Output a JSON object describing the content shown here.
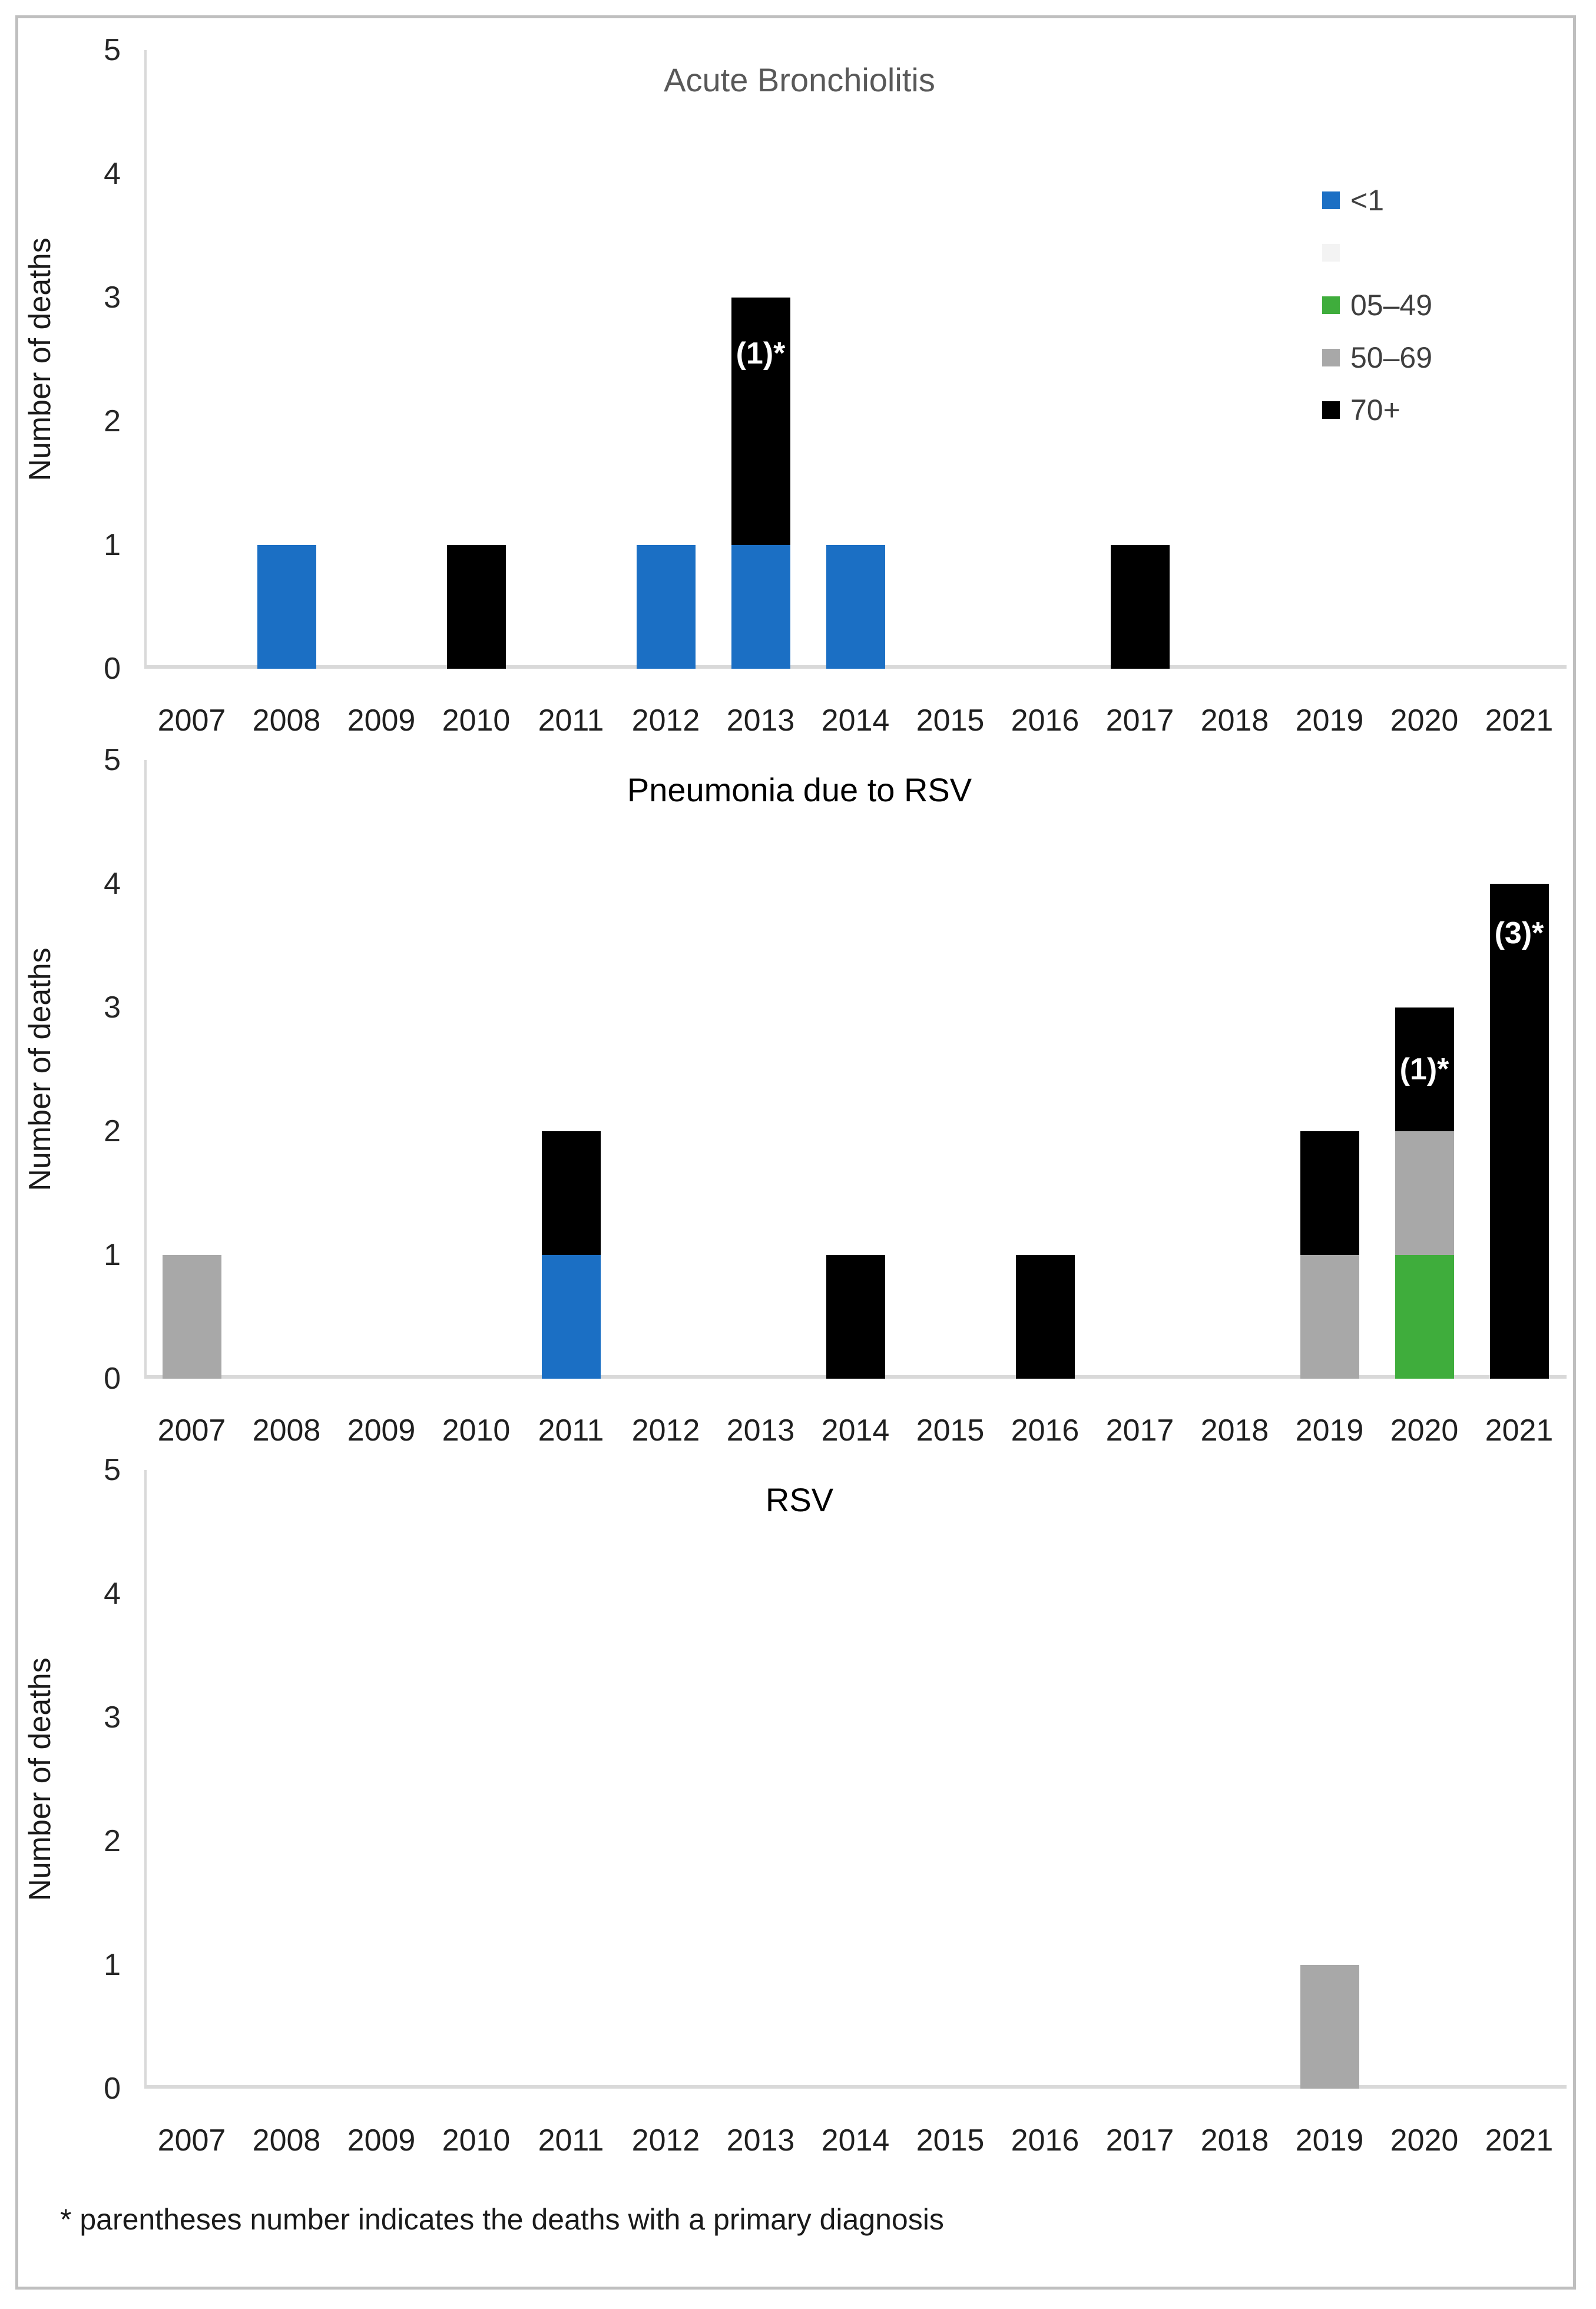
{
  "page": {
    "footnote": "* parentheses number indicates the deaths with a primary diagnosis"
  },
  "axis": {
    "y_label": "Number of deaths",
    "y_ticks": [
      0,
      1,
      2,
      3,
      4,
      5
    ],
    "y_max": 5
  },
  "legend": {
    "position": "right-top-of-first-chart",
    "items": [
      {
        "label": "<1",
        "color": "#1b6fc4"
      },
      {
        "label": "",
        "color": "#f3f3f3"
      },
      {
        "label": "05–49",
        "color": "#3fad3c"
      },
      {
        "label": "50–69",
        "color": "#a8a8a8"
      },
      {
        "label": "70+",
        "color": "#000000"
      }
    ]
  },
  "chart_data": [
    {
      "type": "bar",
      "stacked": true,
      "title": "Acute Bronchiolitis",
      "title_color": "#595959",
      "ylabel": "Number of deaths",
      "ylim": [
        0,
        5
      ],
      "grid": false,
      "categories": [
        "2007",
        "2008",
        "2009",
        "2010",
        "2011",
        "2012",
        "2013",
        "2014",
        "2015",
        "2016",
        "2017",
        "2018",
        "2019",
        "2020",
        "2021"
      ],
      "series": [
        {
          "name": "<1",
          "color": "#1b6fc4",
          "values": [
            0,
            1,
            0,
            0,
            0,
            1,
            1,
            1,
            0,
            0,
            0,
            0,
            0,
            0,
            0
          ]
        },
        {
          "name": "05–49",
          "color": "#3fad3c",
          "values": [
            0,
            0,
            0,
            0,
            0,
            0,
            0,
            0,
            0,
            0,
            0,
            0,
            0,
            0,
            0
          ]
        },
        {
          "name": "50–69",
          "color": "#a8a8a8",
          "values": [
            0,
            0,
            0,
            0,
            0,
            0,
            0,
            0,
            0,
            0,
            0,
            0,
            0,
            0,
            0
          ]
        },
        {
          "name": "70+",
          "color": "#000000",
          "values": [
            0,
            0,
            0,
            1,
            0,
            0,
            2,
            0,
            0,
            0,
            1,
            0,
            0,
            0,
            0
          ]
        }
      ],
      "annotations": [
        {
          "category": "2013",
          "label": "(1)*",
          "value": 2.55
        }
      ]
    },
    {
      "type": "bar",
      "stacked": true,
      "title": "Pneumonia due to RSV",
      "title_color": "#000000",
      "ylabel": "Number of deaths",
      "ylim": [
        0,
        5
      ],
      "grid": false,
      "categories": [
        "2007",
        "2008",
        "2009",
        "2010",
        "2011",
        "2012",
        "2013",
        "2014",
        "2015",
        "2016",
        "2017",
        "2018",
        "2019",
        "2020",
        "2021"
      ],
      "series": [
        {
          "name": "<1",
          "color": "#1b6fc4",
          "values": [
            0,
            0,
            0,
            0,
            1,
            0,
            0,
            0,
            0,
            0,
            0,
            0,
            0,
            0,
            0
          ]
        },
        {
          "name": "05–49",
          "color": "#3fad3c",
          "values": [
            0,
            0,
            0,
            0,
            0,
            0,
            0,
            0,
            0,
            0,
            0,
            0,
            0,
            1,
            0
          ]
        },
        {
          "name": "50–69",
          "color": "#a8a8a8",
          "values": [
            1,
            0,
            0,
            0,
            0,
            0,
            0,
            0,
            0,
            0,
            0,
            0,
            1,
            1,
            0
          ]
        },
        {
          "name": "70+",
          "color": "#000000",
          "values": [
            0,
            0,
            0,
            0,
            1,
            0,
            0,
            1,
            0,
            1,
            0,
            0,
            1,
            1,
            4
          ]
        }
      ],
      "annotations": [
        {
          "category": "2020",
          "label": "(1)*",
          "value": 2.5
        },
        {
          "category": "2021",
          "label": "(3)*",
          "value": 3.6
        }
      ]
    },
    {
      "type": "bar",
      "stacked": true,
      "title": "RSV",
      "title_color": "#000000",
      "ylabel": "Number of deaths",
      "ylim": [
        0,
        5
      ],
      "grid": false,
      "categories": [
        "2007",
        "2008",
        "2009",
        "2010",
        "2011",
        "2012",
        "2013",
        "2014",
        "2015",
        "2016",
        "2017",
        "2018",
        "2019",
        "2020",
        "2021"
      ],
      "series": [
        {
          "name": "<1",
          "color": "#1b6fc4",
          "values": [
            0,
            0,
            0,
            0,
            0,
            0,
            0,
            0,
            0,
            0,
            0,
            0,
            0,
            0,
            0
          ]
        },
        {
          "name": "05–49",
          "color": "#3fad3c",
          "values": [
            0,
            0,
            0,
            0,
            0,
            0,
            0,
            0,
            0,
            0,
            0,
            0,
            0,
            0,
            0
          ]
        },
        {
          "name": "50–69",
          "color": "#a8a8a8",
          "values": [
            0,
            0,
            0,
            0,
            0,
            0,
            0,
            0,
            0,
            0,
            0,
            0,
            1,
            0,
            0
          ]
        },
        {
          "name": "70+",
          "color": "#000000",
          "values": [
            0,
            0,
            0,
            0,
            0,
            0,
            0,
            0,
            0,
            0,
            0,
            0,
            0,
            0,
            0
          ]
        }
      ],
      "annotations": []
    }
  ]
}
